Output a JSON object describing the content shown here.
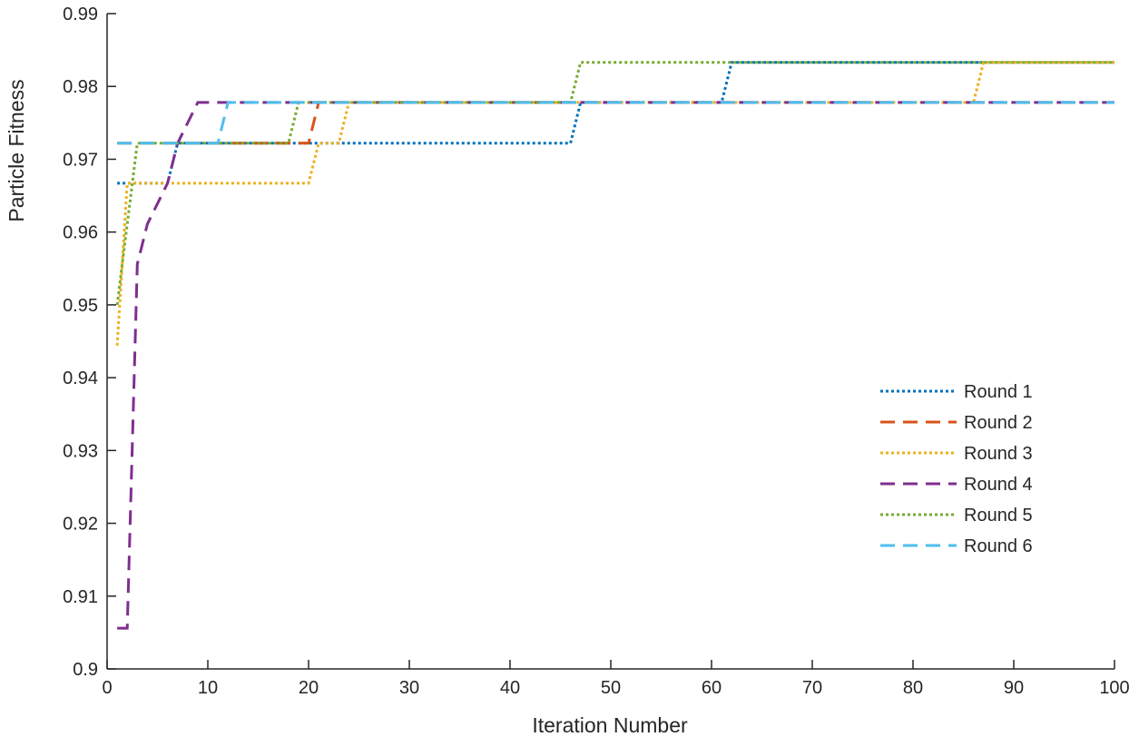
{
  "chart_data": {
    "type": "line",
    "xlabel": "Iteration Number",
    "ylabel": "Particle Fitness",
    "xlim": [
      0,
      100
    ],
    "ylim": [
      0.9,
      0.99
    ],
    "xticks": [
      0,
      10,
      20,
      30,
      40,
      50,
      60,
      70,
      80,
      90,
      100
    ],
    "yticks": [
      0.9,
      0.91,
      0.92,
      0.93,
      0.94,
      0.95,
      0.96,
      0.97,
      0.98,
      0.99
    ],
    "xtick_labels": [
      "0",
      "10",
      "20",
      "30",
      "40",
      "50",
      "60",
      "70",
      "80",
      "90",
      "100"
    ],
    "ytick_labels": [
      "0.9",
      "0.91",
      "0.92",
      "0.93",
      "0.94",
      "0.95",
      "0.96",
      "0.97",
      "0.98",
      "0.99"
    ],
    "grid": false,
    "legend_position": "right-lower",
    "series": [
      {
        "name": "Round 1",
        "color": "#0072BD",
        "style": "dotted",
        "points": [
          [
            1,
            0.9667
          ],
          [
            6,
            0.9667
          ],
          [
            7,
            0.9722
          ],
          [
            46,
            0.9722
          ],
          [
            47,
            0.9778
          ],
          [
            61,
            0.9778
          ],
          [
            62,
            0.9833
          ],
          [
            100,
            0.9833
          ]
        ]
      },
      {
        "name": "Round 2",
        "color": "#D95319",
        "style": "dashed",
        "points": [
          [
            1,
            0.9722
          ],
          [
            20,
            0.9722
          ],
          [
            21,
            0.9778
          ],
          [
            100,
            0.9778
          ]
        ]
      },
      {
        "name": "Round 3",
        "color": "#EDB120",
        "style": "dotted",
        "points": [
          [
            1,
            0.9444
          ],
          [
            2,
            0.9667
          ],
          [
            20,
            0.9667
          ],
          [
            21,
            0.9722
          ],
          [
            23,
            0.9722
          ],
          [
            24,
            0.9778
          ],
          [
            86,
            0.9778
          ],
          [
            87,
            0.9833
          ],
          [
            100,
            0.9833
          ]
        ]
      },
      {
        "name": "Round 4",
        "color": "#7E2F8E",
        "style": "dashed",
        "points": [
          [
            1,
            0.9056
          ],
          [
            2,
            0.9056
          ],
          [
            3,
            0.9556
          ],
          [
            4,
            0.9611
          ],
          [
            6,
            0.9667
          ],
          [
            7,
            0.9722
          ],
          [
            9,
            0.9778
          ],
          [
            100,
            0.9778
          ]
        ]
      },
      {
        "name": "Round 5",
        "color": "#77AC30",
        "style": "dotted",
        "points": [
          [
            1,
            0.95
          ],
          [
            3,
            0.9722
          ],
          [
            18,
            0.9722
          ],
          [
            19,
            0.9778
          ],
          [
            46,
            0.9778
          ],
          [
            47,
            0.9833
          ],
          [
            100,
            0.9833
          ]
        ]
      },
      {
        "name": "Round 6",
        "color": "#4DBEEE",
        "style": "dashed",
        "points": [
          [
            1,
            0.9722
          ],
          [
            11,
            0.9722
          ],
          [
            12,
            0.9778
          ],
          [
            100,
            0.9778
          ]
        ]
      }
    ]
  }
}
